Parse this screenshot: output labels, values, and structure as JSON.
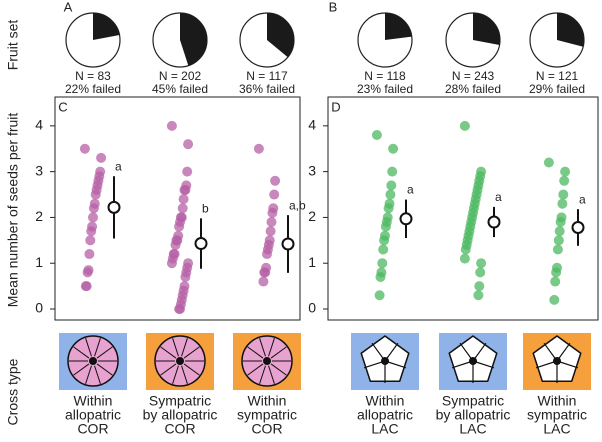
{
  "axis_titles": {
    "fruit_set": "Fruit set",
    "seeds": "Mean number of seeds per fruit",
    "cross_type": "Cross type"
  },
  "chart_data": [
    {
      "type": "pie",
      "panel": "A",
      "labels": [
        "N = 83",
        "N = 202",
        "N = 117"
      ],
      "values": [
        22,
        45,
        36
      ],
      "value_labels": [
        "22% failed",
        "45% failed",
        "36% failed"
      ],
      "color": "#1a1a1a"
    },
    {
      "type": "pie",
      "panel": "B",
      "labels": [
        "N = 118",
        "N = 243",
        "N = 121"
      ],
      "values": [
        23,
        28,
        29
      ],
      "value_labels": [
        "23% failed",
        "28% failed",
        "29% failed"
      ],
      "color": "#1a1a1a"
    },
    {
      "type": "strip",
      "panel": "C",
      "categories": [
        [
          "Within",
          "allopatric",
          "COR"
        ],
        [
          "Sympatric",
          "by allopatric",
          "COR"
        ],
        [
          "Within",
          "sympatric",
          "COR"
        ]
      ],
      "points": [
        [
          3.5,
          3.3,
          3.0,
          2.9,
          2.8,
          2.7,
          2.6,
          2.5,
          2.3,
          2.2,
          2.0,
          1.8,
          1.7,
          1.5,
          1.2,
          0.85,
          0.8,
          0.5,
          0.5
        ],
        [
          4.0,
          3.6,
          3.0,
          2.7,
          2.6,
          2.6,
          2.4,
          2.2,
          2.0,
          2.0,
          1.9,
          1.8,
          1.6,
          1.5,
          1.5,
          1.4,
          1.2,
          1.2,
          1.1,
          1.0,
          1.0,
          0.9,
          0.8,
          0.7,
          0.5,
          0.4,
          0.3,
          0.2,
          0.1,
          0.0,
          0.0
        ],
        [
          3.5,
          2.8,
          2.5,
          2.2,
          2.1,
          1.9,
          1.7,
          1.5,
          1.4,
          1.3,
          1.2,
          0.9,
          0.8,
          0.8,
          0.6
        ]
      ],
      "means": [
        2.22,
        1.43,
        1.42
      ],
      "errors": [
        0.68,
        0.55,
        0.63
      ],
      "letters": [
        "a",
        "b",
        "a,b"
      ],
      "color": "#b560a6",
      "backgrounds": [
        "#8fb3e8",
        "#f5a03c",
        "#f5a03c"
      ],
      "flower_color": "#e7a2cf",
      "flower": "round",
      "ylim": [
        -0.24,
        4.63
      ],
      "yticks": [
        0,
        1,
        2,
        3,
        4
      ]
    },
    {
      "type": "strip",
      "panel": "D",
      "categories": [
        [
          "Within",
          "allopatric",
          "LAC"
        ],
        [
          "Sympatric",
          "by allopatric",
          "LAC"
        ],
        [
          "Within",
          "sympatric",
          "LAC"
        ]
      ],
      "points": [
        [
          3.8,
          3.5,
          3.0,
          2.7,
          2.5,
          2.3,
          2.2,
          2.0,
          1.9,
          1.8,
          1.6,
          1.5,
          1.3,
          1.0,
          0.8,
          0.7,
          0.3
        ],
        [
          4.0,
          3.0,
          2.9,
          2.8,
          2.7,
          2.6,
          2.5,
          2.4,
          2.3,
          2.2,
          2.1,
          2.0,
          1.9,
          1.8,
          1.7,
          1.6,
          1.5,
          1.4,
          1.3,
          1.1,
          1.0,
          0.8,
          0.5,
          0.3
        ],
        [
          3.2,
          3.0,
          2.8,
          2.5,
          2.3,
          2.0,
          1.9,
          1.7,
          1.5,
          1.3,
          0.9,
          0.8,
          0.6,
          0.2
        ]
      ],
      "means": [
        1.97,
        1.9,
        1.78
      ],
      "errors": [
        0.42,
        0.33,
        0.4
      ],
      "letters": [
        "a",
        "a",
        "a"
      ],
      "color": "#4cb860",
      "backgrounds": [
        "#8fb3e8",
        "#8fb3e8",
        "#f5a03c"
      ],
      "flower_color": "#ffffff",
      "flower": "star",
      "ylim": [
        -0.24,
        4.63
      ],
      "yticks": [
        0,
        1,
        2,
        3,
        4
      ]
    }
  ]
}
